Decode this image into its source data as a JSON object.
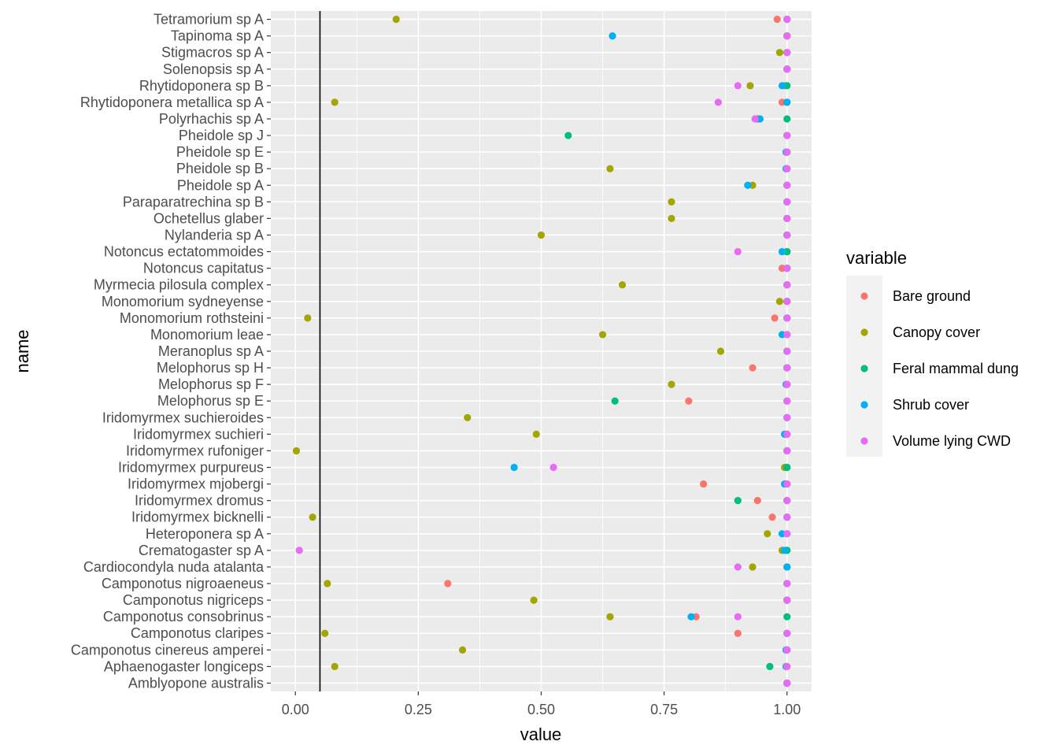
{
  "chart_data": {
    "type": "scatter",
    "xlabel": "value",
    "ylabel": "name",
    "xlim": [
      -0.05,
      1.05
    ],
    "x_ticks": [
      0,
      0.25,
      0.5,
      0.75,
      1
    ],
    "x_tick_labels": [
      "0.00",
      "0.25",
      "0.50",
      "0.75",
      "1.00"
    ],
    "vline": 0.05,
    "legend": {
      "title": "variable",
      "position": "right",
      "entries": [
        {
          "name": "Bare ground",
          "color": "#F8766D"
        },
        {
          "name": "Canopy cover",
          "color": "#A3A500"
        },
        {
          "name": "Feral mammal dung",
          "color": "#00BF7D"
        },
        {
          "name": "Shrub cover",
          "color": "#00B0F6"
        },
        {
          "name": "Volume lying CWD",
          "color": "#E76BF3"
        }
      ]
    },
    "categories": [
      "Tetramorium sp  A",
      "Tapinoma sp  A",
      "Stigmacros sp  A",
      "Solenopsis sp  A",
      "Rhytidoponera sp  B",
      "Rhytidoponera metallica sp  A",
      "Polyrhachis sp  A",
      "Pheidole sp  J",
      "Pheidole sp  E",
      "Pheidole sp  B",
      "Pheidole sp  A",
      "Paraparatrechina sp  B",
      "Ochetellus glaber",
      "Nylanderia sp  A",
      "Notoncus ectatommoides",
      "Notoncus capitatus",
      "Myrmecia pilosula complex",
      "Monomorium sydneyense",
      "Monomorium rothsteini",
      "Monomorium leae",
      "Meranoplus sp  A",
      "Melophorus sp  H",
      "Melophorus sp  F",
      "Melophorus sp  E",
      "Iridomyrmex suchieroides",
      "Iridomyrmex suchieri",
      "Iridomyrmex rufoniger",
      "Iridomyrmex purpureus",
      "Iridomyrmex mjobergi",
      "Iridomyrmex dromus",
      "Iridomyrmex bicknelli",
      "Heteroponera sp  A",
      "Crematogaster sp  A",
      "Cardiocondyla nuda atalanta",
      "Camponotus nigroaeneus",
      "Camponotus nigriceps",
      "Camponotus consobrinus",
      "Camponotus claripes",
      "Camponotus cinereus amperei",
      "Aphaenogaster longiceps",
      "Amblyopone australis"
    ],
    "series": [
      {
        "name": "Bare ground",
        "values": [
          0.98,
          1.0,
          1.0,
          1.0,
          0.995,
          0.99,
          0.94,
          1.0,
          1.0,
          1.0,
          1.0,
          1.0,
          1.0,
          1.0,
          1.0,
          0.99,
          1.0,
          1.0,
          0.975,
          1.0,
          1.0,
          0.93,
          1.0,
          0.8,
          1.0,
          1.0,
          1.0,
          1.0,
          0.83,
          0.94,
          0.97,
          1.0,
          1.0,
          1.0,
          0.31,
          1.0,
          0.815,
          0.9,
          1.0,
          1.0,
          1.0
        ]
      },
      {
        "name": "Canopy cover",
        "values": [
          0.205,
          1.0,
          0.985,
          1.0,
          0.925,
          0.08,
          0.94,
          1.0,
          1.0,
          0.64,
          0.93,
          0.765,
          0.765,
          0.5,
          1.0,
          1.0,
          0.665,
          0.985,
          0.025,
          0.625,
          0.865,
          1.0,
          0.765,
          1.0,
          0.35,
          0.49,
          0.002,
          0.995,
          1.0,
          1.0,
          0.035,
          0.96,
          0.99,
          0.93,
          0.065,
          0.485,
          0.64,
          0.06,
          0.34,
          0.08,
          1.0
        ]
      },
      {
        "name": "Feral mammal dung",
        "values": [
          1.0,
          1.0,
          1.0,
          1.0,
          1.0,
          1.0,
          1.0,
          0.555,
          1.0,
          1.0,
          1.0,
          1.0,
          1.0,
          1.0,
          1.0,
          1.0,
          1.0,
          1.0,
          1.0,
          1.0,
          1.0,
          1.0,
          1.0,
          0.65,
          1.0,
          1.0,
          1.0,
          1.0,
          1.0,
          0.9,
          1.0,
          1.0,
          1.0,
          1.0,
          1.0,
          1.0,
          1.0,
          1.0,
          1.0,
          0.965,
          1.0
        ]
      },
      {
        "name": "Shrub cover",
        "values": [
          1.0,
          0.645,
          1.0,
          1.0,
          0.99,
          1.0,
          0.945,
          1.0,
          0.998,
          0.998,
          0.92,
          1.0,
          1.0,
          1.0,
          0.99,
          1.0,
          1.0,
          1.0,
          1.0,
          0.99,
          1.0,
          1.0,
          0.998,
          1.0,
          1.0,
          0.995,
          1.0,
          0.445,
          0.995,
          1.0,
          1.0,
          0.99,
          0.995,
          1.0,
          1.0,
          1.0,
          0.805,
          1.0,
          0.998,
          0.998,
          1.0
        ]
      },
      {
        "name": "Volume lying CWD",
        "values": [
          1.0,
          1.0,
          1.0,
          1.0,
          0.9,
          0.86,
          0.935,
          1.0,
          1.0,
          1.0,
          1.0,
          1.0,
          1.0,
          1.0,
          0.9,
          1.0,
          1.0,
          1.0,
          1.0,
          1.0,
          1.0,
          1.0,
          1.0,
          1.0,
          1.0,
          1.0,
          1.0,
          0.525,
          1.0,
          1.0,
          1.0,
          1.0,
          0.008,
          0.9,
          1.0,
          1.0,
          0.9,
          1.0,
          1.0,
          1.0,
          1.0
        ]
      }
    ]
  }
}
